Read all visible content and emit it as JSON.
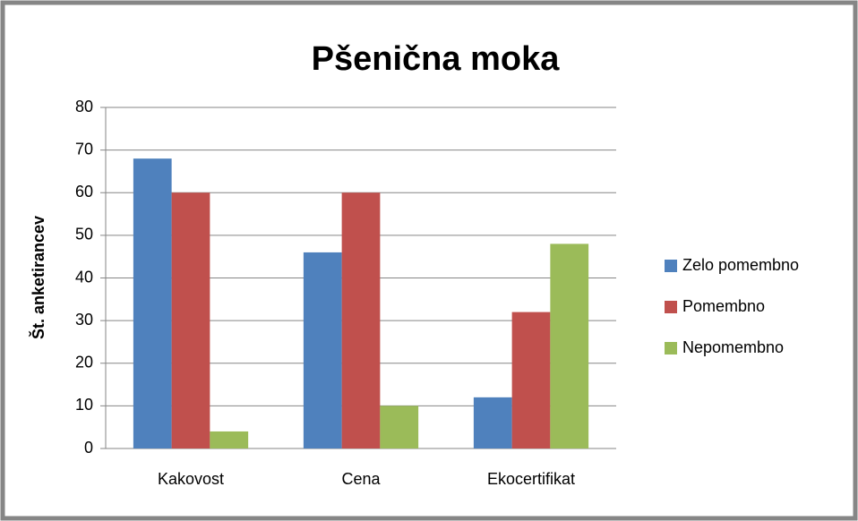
{
  "chart_data": {
    "type": "bar",
    "title": "Pšenična moka",
    "y_label": "Št. anketirancev",
    "categories": [
      "Kakovost",
      "Cena",
      "Ekocertifikat"
    ],
    "series": [
      {
        "name": "Zelo pomembno",
        "color": "#4f81bd",
        "values": [
          68,
          46,
          12
        ]
      },
      {
        "name": "Pomembno",
        "color": "#c0504d",
        "values": [
          60,
          60,
          32
        ]
      },
      {
        "name": "Nepomembno",
        "color": "#9bbb59",
        "values": [
          4,
          10,
          48
        ]
      }
    ],
    "ylim": [
      0,
      80
    ],
    "yticks": [
      0,
      10,
      20,
      30,
      40,
      50,
      60,
      70,
      80
    ],
    "grid": true,
    "legend": "right"
  }
}
